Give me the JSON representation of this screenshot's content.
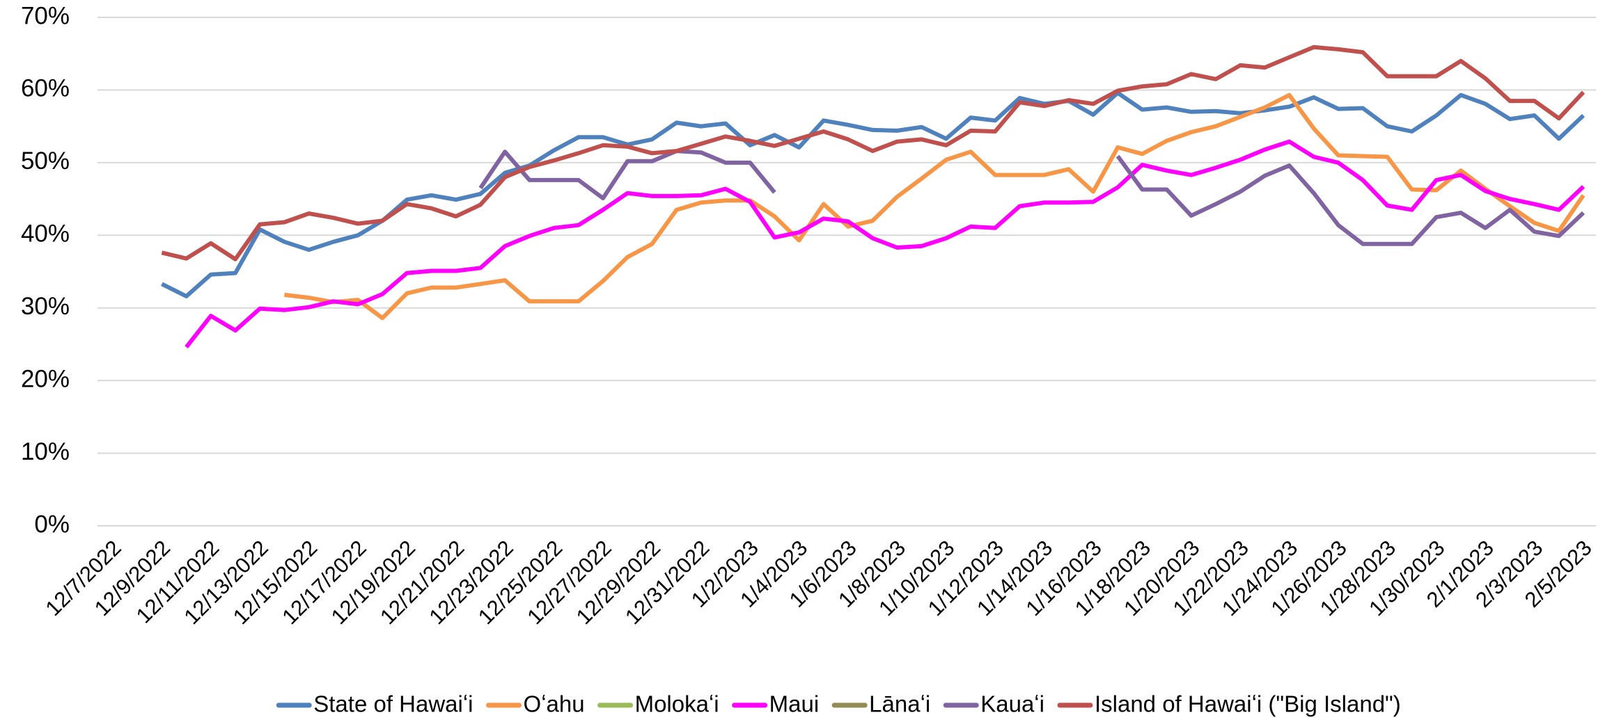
{
  "chart_data": {
    "type": "line",
    "categories": [
      "12/7/2022",
      null,
      "12/9/2022",
      null,
      "12/11/2022",
      null,
      "12/13/2022",
      null,
      "12/15/2022",
      null,
      "12/17/2022",
      null,
      "12/19/2022",
      null,
      "12/21/2022",
      null,
      "12/23/2022",
      null,
      "12/25/2022",
      null,
      "12/27/2022",
      null,
      "12/29/2022",
      null,
      "12/31/2022",
      null,
      "1/2/2023",
      null,
      "1/4/2023",
      null,
      "1/6/2023",
      null,
      "1/8/2023",
      null,
      "1/10/2023",
      null,
      "1/12/2023",
      null,
      "1/14/2023",
      null,
      "1/16/2023",
      null,
      "1/18/2023",
      null,
      "1/20/2023",
      null,
      "1/22/2023",
      null,
      "1/24/2023",
      null,
      "1/26/2023",
      null,
      "1/28/2023",
      null,
      "1/30/2023",
      null,
      "2/1/2023",
      null,
      "2/3/2023",
      null,
      "2/5/2023"
    ],
    "ylim": [
      0,
      70
    ],
    "yticks": [
      {
        "value": 0,
        "label": "0%"
      },
      {
        "value": 10,
        "label": "10%"
      },
      {
        "value": 20,
        "label": "20%"
      },
      {
        "value": 30,
        "label": "30%"
      },
      {
        "value": 40,
        "label": "40%"
      },
      {
        "value": 50,
        "label": "50%"
      },
      {
        "value": 60,
        "label": "60%"
      },
      {
        "value": 70,
        "label": "70%"
      }
    ],
    "grid": true,
    "legend": "bottom",
    "series": [
      {
        "name": "State of Hawaiʻi",
        "color": "#4f81bd",
        "values": [
          null,
          null,
          33.3,
          31.6,
          34.6,
          34.8,
          40.8,
          39.1,
          38.0,
          39.1,
          40.0,
          42.0,
          44.9,
          45.5,
          44.9,
          45.7,
          48.6,
          49.6,
          51.7,
          53.5,
          53.5,
          52.5,
          53.2,
          55.5,
          55.0,
          55.4,
          52.4,
          53.8,
          52.1,
          55.8,
          55.2,
          54.5,
          54.4,
          54.9,
          53.3,
          56.2,
          55.8,
          58.9,
          58.1,
          58.5,
          56.6,
          59.6,
          57.3,
          57.6,
          57.0,
          57.1,
          56.8,
          57.2,
          57.7,
          59.0,
          57.4,
          57.5,
          55.0,
          54.3,
          56.5,
          59.3,
          58.1,
          56.0,
          56.5,
          53.3,
          56.5
        ]
      },
      {
        "name": "Oʻahu",
        "color": "#f79646",
        "values": [
          null,
          null,
          null,
          null,
          null,
          null,
          null,
          31.8,
          31.4,
          30.8,
          31.1,
          28.6,
          32.0,
          32.8,
          32.8,
          33.3,
          33.8,
          30.9,
          30.9,
          30.9,
          33.7,
          37.0,
          38.8,
          43.5,
          44.5,
          44.8,
          44.8,
          42.6,
          39.3,
          44.3,
          41.2,
          42.0,
          45.3,
          47.8,
          50.4,
          51.5,
          48.3,
          48.3,
          48.3,
          49.1,
          46.0,
          52.1,
          51.2,
          53.0,
          54.2,
          55.0,
          56.3,
          57.6,
          59.3,
          54.7,
          51.0,
          50.9,
          50.8,
          46.3,
          46.2,
          48.9,
          46.4,
          44.0,
          41.7,
          40.6,
          45.5
        ]
      },
      {
        "name": "Molokaʻi",
        "color": "#9bbb59",
        "values": [
          null,
          null,
          null,
          null,
          null,
          null,
          null,
          null,
          null,
          null,
          null,
          null,
          null,
          null,
          null,
          null,
          null,
          null,
          null,
          null,
          null,
          null,
          null,
          null,
          null,
          null,
          null,
          null,
          null,
          null,
          null,
          null,
          null,
          null,
          null,
          null,
          null,
          null,
          null,
          null,
          null,
          null,
          null,
          null,
          null,
          null,
          null,
          null,
          null,
          null,
          null,
          null,
          null,
          null,
          null,
          null,
          null,
          null,
          null,
          null,
          null
        ]
      },
      {
        "name": "Maui",
        "color": "#ff00ff",
        "values": [
          null,
          null,
          null,
          24.6,
          28.9,
          26.9,
          29.9,
          29.7,
          30.1,
          30.9,
          30.5,
          31.9,
          34.8,
          35.1,
          35.1,
          35.5,
          38.5,
          39.9,
          41.0,
          41.4,
          43.5,
          45.8,
          45.4,
          45.4,
          45.5,
          46.4,
          44.6,
          39.7,
          40.4,
          42.3,
          41.9,
          39.6,
          38.3,
          38.5,
          39.6,
          41.2,
          41.0,
          44.0,
          44.5,
          44.5,
          44.6,
          46.6,
          49.7,
          48.9,
          48.3,
          49.3,
          50.4,
          51.8,
          52.9,
          50.8,
          50.0,
          47.6,
          44.1,
          43.5,
          47.6,
          48.3,
          46.1,
          45.0,
          44.3,
          43.5,
          46.7
        ]
      },
      {
        "name": "Lānaʻi",
        "color": "#948a54",
        "values": [
          null,
          null,
          null,
          null,
          null,
          null,
          null,
          null,
          null,
          null,
          null,
          null,
          null,
          null,
          null,
          null,
          null,
          null,
          null,
          null,
          null,
          null,
          null,
          null,
          null,
          null,
          null,
          null,
          null,
          null,
          null,
          null,
          null,
          null,
          null,
          null,
          null,
          null,
          null,
          null,
          null,
          null,
          null,
          null,
          null,
          null,
          null,
          null,
          null,
          null,
          null,
          null,
          null,
          null,
          null,
          null,
          null,
          null,
          null,
          null,
          null
        ]
      },
      {
        "name": "Kauaʻi",
        "color": "#8064a2",
        "values": [
          null,
          null,
          null,
          null,
          null,
          null,
          null,
          null,
          null,
          null,
          null,
          null,
          null,
          null,
          null,
          46.5,
          51.5,
          47.6,
          47.6,
          47.6,
          45.1,
          50.2,
          50.2,
          51.6,
          51.4,
          50.0,
          50.0,
          45.9,
          null,
          null,
          null,
          null,
          null,
          null,
          null,
          null,
          null,
          null,
          null,
          null,
          null,
          50.9,
          46.3,
          46.3,
          42.7,
          44.3,
          46.0,
          48.2,
          49.6,
          45.8,
          41.4,
          38.8,
          38.8,
          38.8,
          42.5,
          43.1,
          41.0,
          43.5,
          40.5,
          39.9,
          43.1
        ]
      },
      {
        "name": "Island of Hawaiʻi (\"Big Island\")",
        "color": "#c0504d",
        "values": [
          null,
          null,
          37.6,
          36.8,
          38.9,
          36.7,
          41.5,
          41.8,
          43.0,
          42.4,
          41.6,
          42.0,
          44.3,
          43.7,
          42.6,
          44.2,
          48.0,
          49.4,
          50.3,
          51.3,
          52.4,
          52.2,
          51.3,
          51.6,
          52.6,
          53.6,
          53.0,
          52.3,
          53.3,
          54.3,
          53.2,
          51.6,
          52.9,
          53.2,
          52.4,
          54.4,
          54.3,
          58.3,
          57.8,
          58.6,
          58.1,
          59.9,
          60.5,
          60.8,
          62.2,
          61.5,
          63.4,
          63.1,
          64.5,
          65.9,
          65.6,
          65.2,
          61.9,
          61.9,
          61.9,
          64.0,
          61.6,
          58.5,
          58.5,
          56.1,
          59.7
        ]
      }
    ]
  }
}
